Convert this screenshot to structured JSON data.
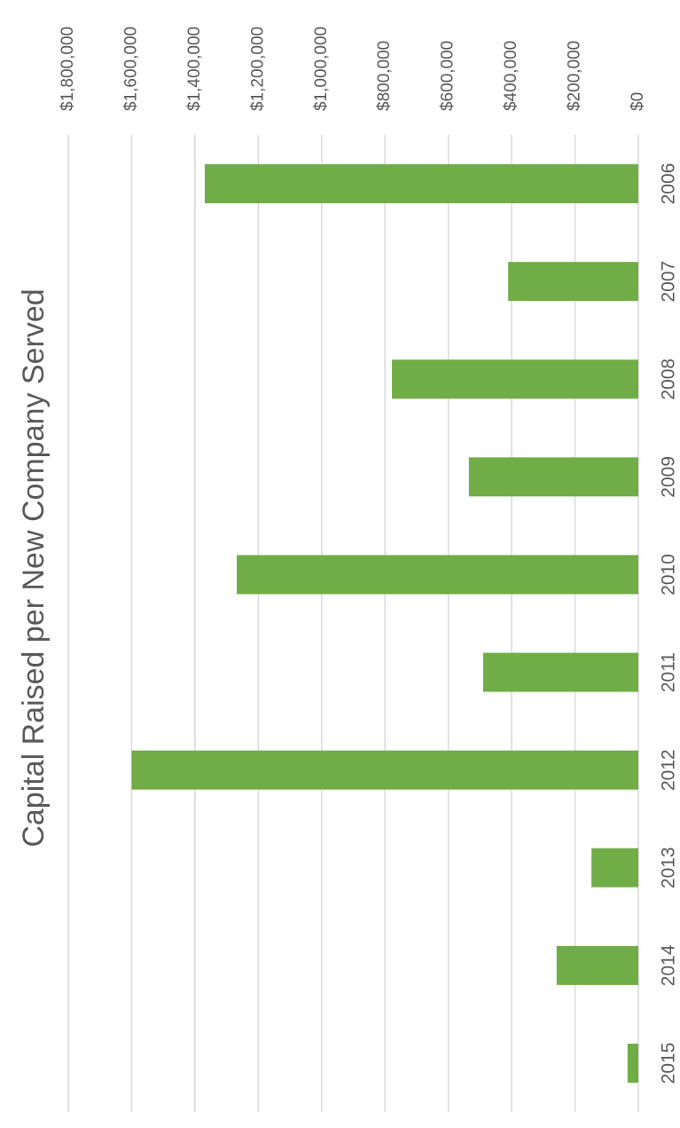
{
  "chart_data": {
    "type": "bar",
    "orientation": "rotated",
    "title": "Capital Raised per New Company Served",
    "categories": [
      "2006",
      "2007",
      "2008",
      "2009",
      "2010",
      "2011",
      "2012",
      "2013",
      "2014",
      "2015"
    ],
    "values": [
      1369000,
      411000,
      778000,
      535000,
      1268000,
      490000,
      1600000,
      148000,
      258000,
      34000
    ],
    "color": "#70ad47",
    "ylim": [
      0,
      1800000
    ],
    "yticks": [
      {
        "value": 0,
        "label": "$0"
      },
      {
        "value": 200000,
        "label": "$200,000"
      },
      {
        "value": 400000,
        "label": "$400,000"
      },
      {
        "value": 600000,
        "label": "$600,000"
      },
      {
        "value": 800000,
        "label": "$800,000"
      },
      {
        "value": 1000000,
        "label": "$1,000,000"
      },
      {
        "value": 1200000,
        "label": "$1,200,000"
      },
      {
        "value": 1400000,
        "label": "$1,400,000"
      },
      {
        "value": 1600000,
        "label": "$1,600,000"
      },
      {
        "value": 1800000,
        "label": "$1,800,000"
      }
    ],
    "grid": true
  }
}
